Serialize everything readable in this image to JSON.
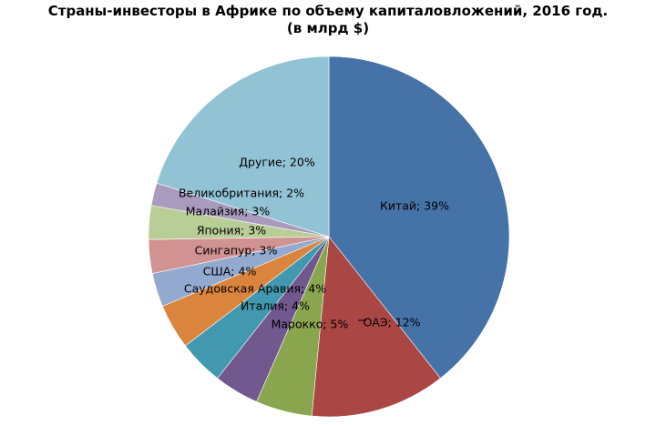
{
  "chart_data": {
    "type": "pie",
    "title": "Страны-инвесторы в Африке по объему капиталовложений, 2016 год.",
    "subtitle": "(в млрд $)",
    "slices": [
      {
        "label": "Китай",
        "value": 39,
        "color": "#4572a7",
        "data_label": "Китай; 39%"
      },
      {
        "label": "ОАЭ",
        "value": 12,
        "color": "#aa4643",
        "data_label": "ОАЭ; 12%"
      },
      {
        "label": "Марокко",
        "value": 5,
        "color": "#89a54e",
        "data_label": "Марокко; 5%"
      },
      {
        "label": "Италия",
        "value": 4,
        "color": "#71588f",
        "data_label": "Италия; 4%"
      },
      {
        "label": "Саудовская Аравия",
        "value": 4,
        "color": "#4198af",
        "data_label": "Саудовская Аравия; 4%"
      },
      {
        "label": "США",
        "value": 4,
        "color": "#db843d",
        "data_label": "США; 4%"
      },
      {
        "label": "Сингапур",
        "value": 3,
        "color": "#93a9cf",
        "data_label": "Сингапур; 3%"
      },
      {
        "label": "Япония",
        "value": 3,
        "color": "#d19392",
        "data_label": "Япония; 3%"
      },
      {
        "label": "Малайзия",
        "value": 3,
        "color": "#b9cd96",
        "data_label": "Малайзия; 3%"
      },
      {
        "label": "Великобритания",
        "value": 2,
        "color": "#a99bbd",
        "data_label": "Великобритания; 2%"
      },
      {
        "label": "Другие",
        "value": 20,
        "color": "#92c3d5",
        "data_label": "Другие; 20%"
      }
    ],
    "legend": "none"
  }
}
